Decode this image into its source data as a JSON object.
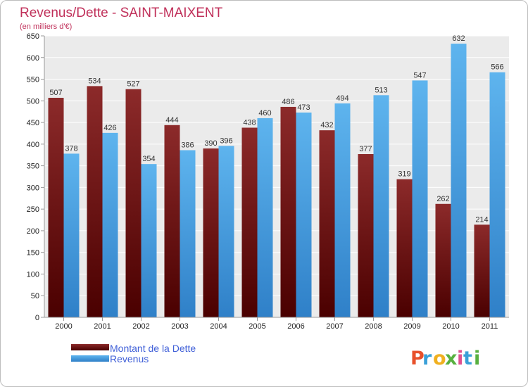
{
  "chart_data": {
    "type": "bar",
    "title": "Revenus/Dette - SAINT-MAIXENT",
    "subtitle": "(en milliers d'€)",
    "categories": [
      "2000",
      "2001",
      "2002",
      "2003",
      "2004",
      "2005",
      "2006",
      "2007",
      "2008",
      "2009",
      "2010",
      "2011"
    ],
    "series": [
      {
        "name": "Montant de la Dette",
        "color": "#7a1a1a",
        "values": [
          507,
          534,
          527,
          444,
          390,
          438,
          486,
          432,
          377,
          319,
          262,
          214
        ]
      },
      {
        "name": "Revenus",
        "color": "#4aa3e3",
        "values": [
          378,
          426,
          354,
          386,
          396,
          460,
          473,
          494,
          513,
          547,
          632,
          566
        ]
      }
    ],
    "ylim": [
      0,
      650
    ],
    "yticks": [
      0,
      50,
      100,
      150,
      200,
      250,
      300,
      350,
      400,
      450,
      500,
      550,
      600,
      650
    ],
    "grid": true,
    "legend_position": "bottom-left"
  },
  "logo": {
    "letters": [
      "P",
      "r",
      "o",
      "x",
      "i",
      "t",
      "i"
    ],
    "colors": [
      "#e8502a",
      "#3aa0d8",
      "#f0b020",
      "#58b040",
      "#e05090",
      "#3aa0d8",
      "#58b040"
    ]
  }
}
